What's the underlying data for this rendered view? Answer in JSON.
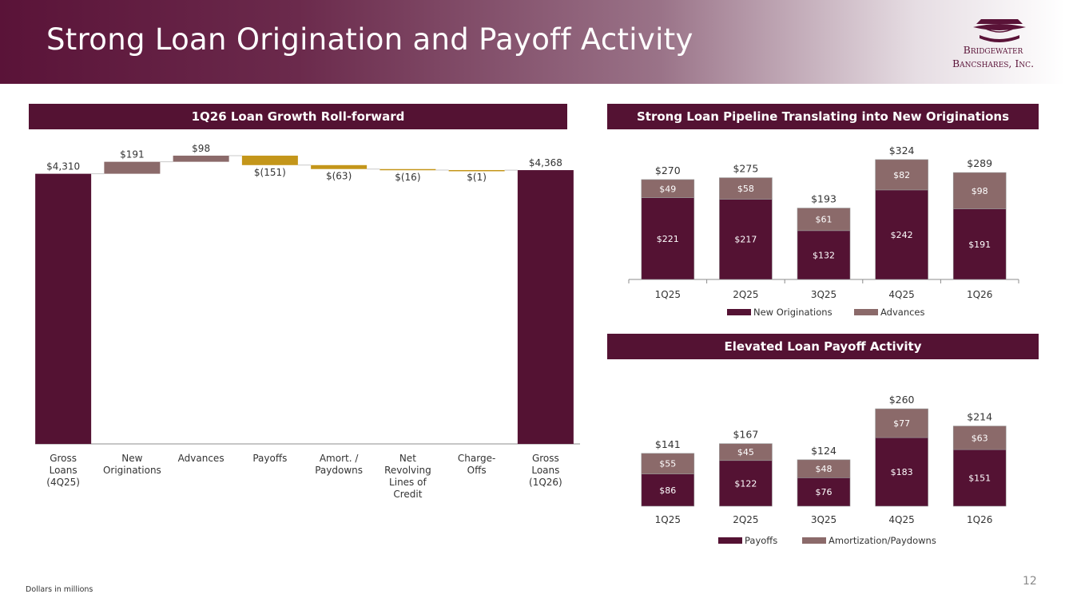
{
  "title": "Strong Loan Origination and Payoff Activity",
  "logo": {
    "line1": "Bridgewater",
    "line2": "Bancshares, Inc."
  },
  "footnote": "Dollars in millions",
  "page_number": "12",
  "colors": {
    "maroon": "#541233",
    "taupe": "#8b6a6a",
    "gold": "#c4961a"
  },
  "chart_data": [
    {
      "type": "bar",
      "subtype": "waterfall",
      "title": "1Q26 Loan Growth Roll-forward",
      "categories": [
        "Gross Loans (4Q25)",
        "New Originations",
        "Advances",
        "Payoffs",
        "Amort. / Paydowns",
        "Net Revolving Lines of Credit",
        "Charge-Offs",
        "Gross Loans (1Q26)"
      ],
      "category_lines": [
        [
          "Gross",
          "Loans",
          "(4Q25)"
        ],
        [
          "New",
          "Originations"
        ],
        [
          "Advances"
        ],
        [
          "Payoffs"
        ],
        [
          "Amort. /",
          "Paydowns"
        ],
        [
          "Net",
          "Revolving",
          "Lines of",
          "Credit"
        ],
        [
          "Charge-",
          "Offs"
        ],
        [
          "Gross",
          "Loans",
          "(1Q26)"
        ]
      ],
      "values": [
        4310,
        191,
        98,
        -151,
        -63,
        -16,
        -1,
        4368
      ],
      "kinds": [
        "total",
        "increase",
        "increase",
        "decrease",
        "decrease",
        "decrease",
        "decrease",
        "total"
      ],
      "labels": [
        "$4,310",
        "$191",
        "$98",
        "$(151)",
        "$(63)",
        "$(16)",
        "$(1)",
        "$4,368"
      ]
    },
    {
      "type": "bar",
      "subtype": "stacked",
      "title": "Strong Loan Pipeline Translating into New Originations",
      "categories": [
        "1Q25",
        "2Q25",
        "3Q25",
        "4Q25",
        "1Q26"
      ],
      "series": [
        {
          "name": "New Originations",
          "values": [
            221,
            217,
            132,
            242,
            191
          ],
          "labels": [
            "$221",
            "$217",
            "$132",
            "$242",
            "$191"
          ]
        },
        {
          "name": "Advances",
          "values": [
            49,
            58,
            61,
            82,
            98
          ],
          "labels": [
            "$49",
            "$58",
            "$61",
            "$82",
            "$98"
          ]
        }
      ],
      "totals": [
        270,
        275,
        193,
        324,
        289
      ],
      "total_labels": [
        "$270",
        "$275",
        "$193",
        "$324",
        "$289"
      ]
    },
    {
      "type": "bar",
      "subtype": "stacked",
      "title": "Elevated Loan Payoff Activity",
      "categories": [
        "1Q25",
        "2Q25",
        "3Q25",
        "4Q25",
        "1Q26"
      ],
      "series": [
        {
          "name": "Payoffs",
          "values": [
            86,
            122,
            76,
            183,
            151
          ],
          "labels": [
            "$86",
            "$122",
            "$76",
            "$183",
            "$151"
          ]
        },
        {
          "name": "Amortization/Paydowns",
          "values": [
            55,
            45,
            48,
            77,
            63
          ],
          "labels": [
            "$55",
            "$45",
            "$48",
            "$77",
            "$63"
          ]
        }
      ],
      "totals": [
        141,
        167,
        124,
        260,
        214
      ],
      "total_labels": [
        "$141",
        "$167",
        "$124",
        "$260",
        "$214"
      ]
    }
  ]
}
